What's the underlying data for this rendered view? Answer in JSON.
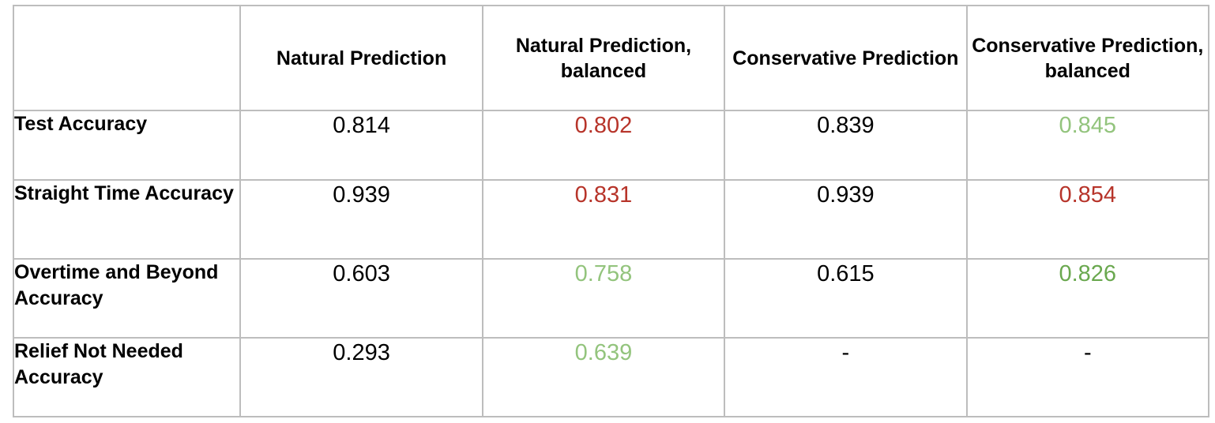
{
  "table": {
    "corner": "",
    "columns": [
      "Natural Prediction",
      "Natural Prediction, balanced",
      "Conservative Prediction",
      "Conservative Prediction, balanced"
    ],
    "rows": [
      {
        "label": "Test Accuracy",
        "values": [
          "0.814",
          "0.802",
          "0.839",
          "0.845"
        ],
        "colors": [
          "black",
          "red",
          "black",
          "light-green"
        ]
      },
      {
        "label": "Straight Time Accuracy",
        "values": [
          "0.939",
          "0.831",
          "0.939",
          "0.854"
        ],
        "colors": [
          "black",
          "red",
          "black",
          "red"
        ]
      },
      {
        "label": "Overtime and Beyond Accuracy",
        "values": [
          "0.603",
          "0.758",
          "0.615",
          "0.826"
        ],
        "colors": [
          "black",
          "light-green",
          "black",
          "green"
        ]
      },
      {
        "label": "Relief Not Needed Accuracy",
        "values": [
          "0.293",
          "0.639",
          "-",
          "-"
        ],
        "colors": [
          "black",
          "light-green",
          "black",
          "black"
        ]
      }
    ]
  },
  "palette": {
    "black": "#000000",
    "red": "#b7342a",
    "light-green": "#93c47d",
    "green": "#6aa84f",
    "border": "#bdbdbd"
  }
}
